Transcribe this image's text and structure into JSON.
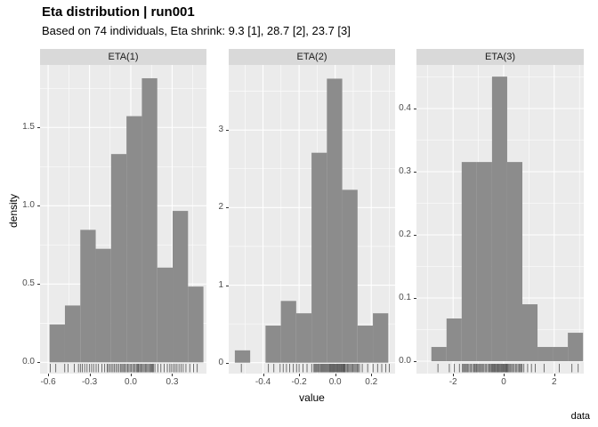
{
  "title": "Eta distribution | run001",
  "subtitle": "Based on 74 individuals, Eta shrink: 9.3 [1], 28.7 [2], 23.7 [3]",
  "xlabel": "value",
  "ylabel": "density",
  "caption": "data",
  "colors": {
    "background": "#FFFFFF",
    "panel_bg": "#EBEBEB",
    "strip_bg": "#D9D9D9",
    "grid": "#FFFFFF",
    "bar_fill": "#8C8C8C",
    "rug": "#404040",
    "tick_mark": "#333333",
    "tick_text": "#4D4D4D"
  },
  "chart_data": {
    "type": "bar",
    "subtype": "faceted-density-histogram-with-rug",
    "n_individuals": 74,
    "eta_shrink": [
      9.3,
      28.7,
      23.7
    ],
    "title": "Eta distribution | run001",
    "subtitle": "Based on 74 individuals, Eta shrink: 9.3 [1], 28.7 [2], 23.7 [3]",
    "xlabel": "value",
    "ylabel": "density",
    "caption": "data",
    "grid": "on",
    "legend": "none",
    "facets": [
      {
        "label": "ETA(1)",
        "bin_start": -0.59,
        "bin_width": 0.1117,
        "densities": [
          0.242,
          0.363,
          0.846,
          0.725,
          1.33,
          1.572,
          1.814,
          0.605,
          0.967,
          0.484
        ],
        "counts": [
          2,
          3,
          7,
          6,
          11,
          13,
          15,
          5,
          8,
          4
        ],
        "xlim": [
          -0.659,
          0.549
        ],
        "ylim": [
          -0.072,
          1.899
        ],
        "x_major": [
          -0.6,
          -0.3,
          0.0,
          0.3
        ],
        "x_tick_labels": [
          "-0.6",
          "-0.3",
          "0.0",
          "0.3"
        ],
        "x_minor": [
          -0.45,
          -0.15,
          0.15,
          0.45
        ],
        "y_major": [
          0,
          0.5,
          1.0,
          1.5
        ],
        "y_tick_labels": [
          "0.0",
          "0.5",
          "1.0",
          "1.5"
        ],
        "y_minor": [
          0.25,
          0.75,
          1.25,
          1.75
        ],
        "rug": [
          -0.585,
          -0.545,
          -0.48,
          -0.455,
          -0.41,
          -0.38,
          -0.366,
          -0.352,
          -0.335,
          -0.318,
          -0.3,
          -0.285,
          -0.27,
          -0.252,
          -0.235,
          -0.21,
          -0.19,
          -0.172,
          -0.163,
          -0.152,
          -0.141,
          -0.13,
          -0.119,
          -0.108,
          -0.097,
          -0.086,
          -0.075,
          -0.066,
          -0.058,
          -0.05,
          -0.041,
          -0.032,
          -0.023,
          -0.014,
          -0.005,
          0.004,
          0.013,
          0.022,
          0.031,
          0.04,
          0.047,
          0.053,
          0.058,
          0.066,
          0.074,
          0.082,
          0.09,
          0.098,
          0.106,
          0.114,
          0.122,
          0.13,
          0.138,
          0.146,
          0.152,
          0.158,
          0.164,
          0.175,
          0.196,
          0.218,
          0.242,
          0.265,
          0.283,
          0.296,
          0.309,
          0.322,
          0.335,
          0.35,
          0.365,
          0.38,
          0.4,
          0.428,
          0.455,
          0.482
        ]
      },
      {
        "label": "ETA(2)",
        "bin_start": -0.556,
        "bin_width": 0.085,
        "densities": [
          0.159,
          0,
          0.478,
          0.796,
          0.637,
          2.707,
          3.662,
          2.229,
          0.478,
          0.637
        ],
        "counts": [
          1,
          0,
          3,
          5,
          4,
          17,
          23,
          14,
          3,
          4
        ],
        "xlim": [
          -0.59,
          0.332
        ],
        "ylim": [
          -0.141,
          3.839
        ],
        "x_major": [
          -0.4,
          -0.2,
          0.0,
          0.2
        ],
        "x_tick_labels": [
          "-0.4",
          "-0.2",
          "0.0",
          "0.2"
        ],
        "x_minor": [
          -0.5,
          -0.3,
          -0.1,
          0.1,
          0.3
        ],
        "y_major": [
          0,
          1,
          2,
          3
        ],
        "y_tick_labels": [
          "0",
          "1",
          "2",
          "3"
        ],
        "y_minor": [
          0.5,
          1.5,
          2.5,
          3.5
        ],
        "rug": [
          -0.52,
          -0.37,
          -0.34,
          -0.305,
          -0.288,
          -0.27,
          -0.252,
          -0.232,
          -0.214,
          -0.2,
          -0.178,
          -0.156,
          -0.13,
          -0.118,
          -0.113,
          -0.108,
          -0.103,
          -0.098,
          -0.093,
          -0.088,
          -0.082,
          -0.077,
          -0.072,
          -0.067,
          -0.062,
          -0.057,
          -0.052,
          -0.047,
          -0.042,
          -0.037,
          -0.032,
          -0.028,
          -0.024,
          -0.02,
          -0.016,
          -0.012,
          -0.008,
          -0.004,
          0,
          0.004,
          0.008,
          0.012,
          0.016,
          0.02,
          0.024,
          0.028,
          0.032,
          0.036,
          0.04,
          0.044,
          0.047,
          0.05,
          0.052,
          0.056,
          0.062,
          0.068,
          0.074,
          0.08,
          0.086,
          0.092,
          0.098,
          0.104,
          0.11,
          0.116,
          0.122,
          0.128,
          0.135,
          0.15,
          0.18,
          0.21,
          0.235,
          0.258,
          0.28,
          0.3
        ]
      },
      {
        "label": "ETA(3)",
        "bin_start": -2.86,
        "bin_width": 0.6,
        "densities": [
          0.0225,
          0.0676,
          0.3153,
          0.3153,
          0.4505,
          0.3153,
          0.0901,
          0.0225,
          0.0225,
          0.045
        ],
        "counts": [
          1,
          3,
          14,
          14,
          20,
          14,
          4,
          1,
          1,
          2
        ],
        "xlim": [
          -3.45,
          3.17
        ],
        "ylim": [
          -0.0197,
          0.469
        ],
        "x_major": [
          -2,
          0,
          2
        ],
        "x_tick_labels": [
          "-2",
          "0",
          "2"
        ],
        "x_minor": [
          -3,
          -1,
          1,
          3
        ],
        "y_major": [
          0,
          0.1,
          0.2,
          0.3,
          0.4
        ],
        "y_tick_labels": [
          "0.0",
          "0.1",
          "0.2",
          "0.3",
          "0.4"
        ],
        "y_minor": [
          0.05,
          0.15,
          0.25,
          0.35,
          0.45
        ],
        "rug": [
          -2.6,
          -2.15,
          -1.95,
          -1.75,
          -1.63,
          -1.59,
          -1.55,
          -1.51,
          -1.47,
          -1.43,
          -1.38,
          -1.33,
          -1.28,
          -1.23,
          -1.18,
          -1.14,
          -1.1,
          -1.07,
          -1.03,
          -0.99,
          -0.95,
          -0.91,
          -0.87,
          -0.82,
          -0.78,
          -0.73,
          -0.68,
          -0.63,
          -0.58,
          -0.54,
          -0.5,
          -0.47,
          -0.44,
          -0.41,
          -0.38,
          -0.35,
          -0.32,
          -0.28,
          -0.25,
          -0.22,
          -0.19,
          -0.16,
          -0.12,
          -0.09,
          -0.06,
          -0.03,
          0,
          0.03,
          0.06,
          0.09,
          0.11,
          0.13,
          0.16,
          0.2,
          0.24,
          0.28,
          0.32,
          0.37,
          0.42,
          0.47,
          0.52,
          0.57,
          0.62,
          0.66,
          0.7,
          0.73,
          0.8,
          0.95,
          1.1,
          1.25,
          1.6,
          2.2,
          2.7,
          2.95
        ]
      }
    ]
  }
}
